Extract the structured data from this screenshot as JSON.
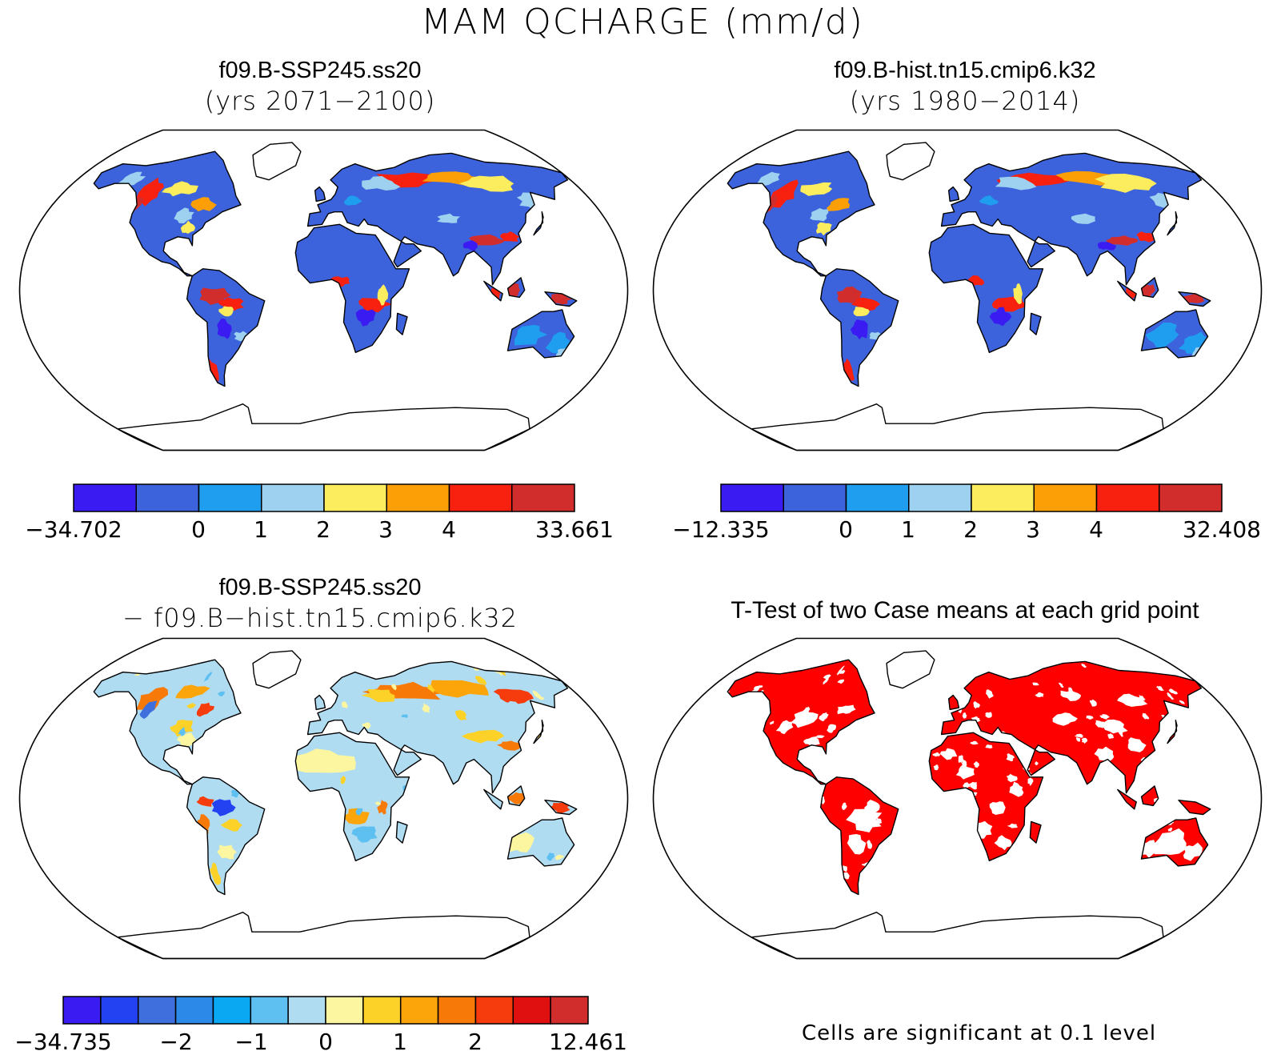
{
  "figure": {
    "title": "MAM QCHARGE (mm/d)"
  },
  "panels": {
    "ssp": {
      "case": "f09.B-SSP245.ss20",
      "years": "(yrs 2071−2100)",
      "colorbar": {
        "colors": [
          "#3a1cf2",
          "#3d63dc",
          "#1f9ef0",
          "#9ed0f0",
          "#fbed5e",
          "#fc9e06",
          "#f8200e",
          "#d22d2d"
        ],
        "labels": [
          "−34.702",
          "0",
          "1",
          "2",
          "3",
          "4",
          "33.661"
        ]
      }
    },
    "hist": {
      "case": "f09.B-hist.tn15.cmip6.k32",
      "years": "(yrs 1980−2014)",
      "colorbar": {
        "colors": [
          "#3a1cf2",
          "#3d63dc",
          "#1f9ef0",
          "#9ed0f0",
          "#fbed5e",
          "#fc9e06",
          "#f8200e",
          "#d22d2d"
        ],
        "labels": [
          "−12.335",
          "0",
          "1",
          "2",
          "3",
          "4",
          "32.408"
        ]
      }
    },
    "diff": {
      "case_a": "f09.B-SSP245.ss20",
      "case_b": "− f09.B−hist.tn15.cmip6.k32",
      "colorbar": {
        "colors": [
          "#3a1cf2",
          "#2342f2",
          "#3f6fdc",
          "#2c89e8",
          "#0aa8f2",
          "#5ec0f0",
          "#b0dcf2",
          "#fdf6a0",
          "#fcd228",
          "#fca50a",
          "#f77a08",
          "#f63c0c",
          "#e01010",
          "#d22d2d"
        ],
        "labels": [
          "−34.735",
          "−2",
          "−1",
          "0",
          "1",
          "2",
          "12.461"
        ]
      }
    },
    "ttest": {
      "title": "T-Test of two Case means at each grid point",
      "note": "Cells are significant at 0.1 level",
      "color": "#ff0000"
    }
  }
}
